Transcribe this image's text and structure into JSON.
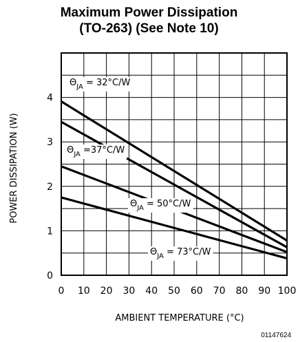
{
  "title_line1": "Maximum Power Dissipation",
  "title_line2": "(TO-263) (See Note 10)",
  "figure_code": "01147624",
  "chart_data": {
    "type": "line",
    "xlabel": "AMBIENT TEMPERATURE (°C)",
    "ylabel": "POWER DISSIPATION (W)",
    "xlim": [
      0,
      100
    ],
    "ylim": [
      0,
      5
    ],
    "x_ticks": [
      0,
      10,
      20,
      30,
      40,
      50,
      60,
      70,
      80,
      90,
      100
    ],
    "y_ticks": [
      0,
      1,
      2,
      3,
      4
    ],
    "grid": true,
    "series": [
      {
        "name": "ΘJA = 32°C/W",
        "sym": "Θ",
        "sub": "JA",
        "val": "= 32°C/W",
        "x": [
          0,
          100
        ],
        "y": [
          3.91,
          0.78
        ]
      },
      {
        "name": "ΘJA = 37°C/W",
        "sym": "Θ",
        "sub": "JA",
        "val": "=37°C/W",
        "x": [
          0,
          100
        ],
        "y": [
          3.45,
          0.63
        ]
      },
      {
        "name": "ΘJA = 50°C/W",
        "sym": "Θ",
        "sub": "JA",
        "val": "= 50°C/W",
        "x": [
          0,
          100
        ],
        "y": [
          2.45,
          0.52
        ]
      },
      {
        "name": "ΘJA = 73°C/W",
        "sym": "Θ",
        "sub": "JA",
        "val": "= 73°C/W",
        "x": [
          0,
          100
        ],
        "y": [
          1.75,
          0.38
        ]
      }
    ]
  }
}
